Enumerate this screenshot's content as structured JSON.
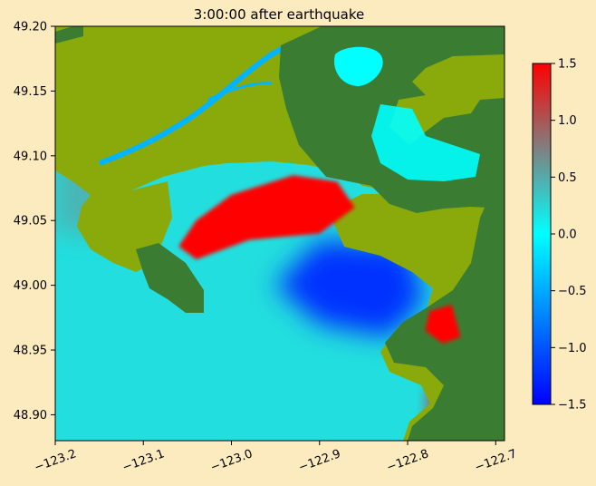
{
  "chart_data": {
    "type": "heatmap",
    "title": "3:00:00 after earthquake",
    "xlabel": "",
    "ylabel": "",
    "xlim": [
      -123.2,
      -122.69
    ],
    "ylim": [
      48.88,
      49.2
    ],
    "x_ticks": [
      -123.2,
      -123.1,
      -123.0,
      -122.9,
      -122.8,
      -122.7
    ],
    "x_tick_labels": [
      "−123.2",
      "−123.1",
      "−123.0",
      "−122.9",
      "−122.8",
      "−122.7"
    ],
    "y_ticks": [
      48.9,
      48.95,
      49.0,
      49.05,
      49.1,
      49.15,
      49.2
    ],
    "y_tick_labels": [
      "48.90",
      "48.95",
      "49.00",
      "49.05",
      "49.10",
      "49.15",
      "49.20"
    ],
    "colorbar": {
      "range": [
        -1.5,
        1.5
      ],
      "ticks": [
        -1.5,
        -1.0,
        -0.5,
        0.0,
        0.5,
        1.0,
        1.5
      ],
      "tick_labels": [
        "−1.5",
        "−1.0",
        "−0.5",
        "0.0",
        "0.5",
        "1.0",
        "1.5"
      ],
      "colors": [
        "#0000ff",
        "#00ffff",
        "#ff0000"
      ]
    },
    "land_colors": {
      "lowland": "#8aaa0c",
      "upland": "#3a7d32",
      "river": "#00b4ff"
    },
    "features": {
      "red_crest": {
        "points": [
          [
            -123.06,
            49.03
          ],
          [
            -123.04,
            49.05
          ],
          [
            -123.0,
            49.07
          ],
          [
            -122.93,
            49.085
          ],
          [
            -122.88,
            49.08
          ],
          [
            -122.86,
            49.06
          ],
          [
            -122.9,
            49.04
          ],
          [
            -122.98,
            49.035
          ],
          [
            -123.04,
            49.02
          ]
        ],
        "value": 1.5
      },
      "trough": {
        "points": [
          [
            -122.9,
            49.035
          ],
          [
            -122.8,
            49.03
          ],
          [
            -122.78,
            48.99
          ],
          [
            -122.82,
            48.96
          ],
          [
            -122.9,
            48.97
          ],
          [
            -122.95,
            49.0
          ]
        ],
        "value": -1.2
      },
      "red_pool": {
        "points": [
          [
            -122.775,
            48.98
          ],
          [
            -122.75,
            48.985
          ],
          [
            -122.74,
            48.96
          ],
          [
            -122.76,
            48.955
          ],
          [
            -122.78,
            48.965
          ]
        ],
        "value": 1.5
      },
      "bay_high": {
        "points": [
          [
            -122.78,
            48.92
          ],
          [
            -122.75,
            48.92
          ],
          [
            -122.75,
            48.895
          ],
          [
            -122.78,
            48.895
          ]
        ],
        "value": 0.8
      },
      "west_high": {
        "points": [
          [
            -123.2,
            49.12
          ],
          [
            -123.15,
            49.1
          ],
          [
            -123.12,
            49.04
          ],
          [
            -123.2,
            49.04
          ]
        ],
        "value": 0.5
      }
    }
  }
}
